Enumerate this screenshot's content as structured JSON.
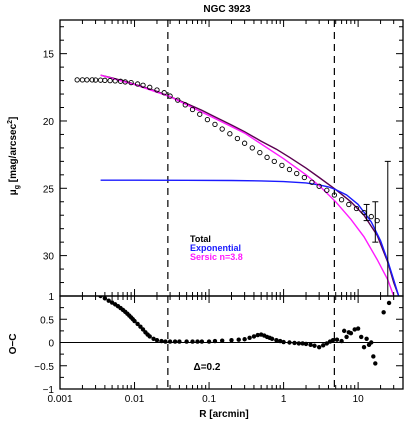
{
  "chart_data": [
    {
      "type": "scatter",
      "title": "NGC 3923",
      "xlabel": "R [arcmin]",
      "ylabel": "μ_g [mag/arcsec²]",
      "ylabel_main": "μ",
      "ylabel_sub": "g",
      "ylabel_rest": " [mag/arcsec",
      "ylabel_sup": "2",
      "ylabel_end": "]",
      "x_scale": "log",
      "xlim": [
        0.001,
        40
      ],
      "ylim": [
        33,
        12.5
      ],
      "y_inverted": true,
      "x_ticks": [
        "0.001",
        "0.01",
        "0.1",
        "1",
        "10"
      ],
      "y_ticks": [
        "15",
        "20",
        "25",
        "30"
      ],
      "grid": false,
      "legend": [
        {
          "label": "Total",
          "color": "#000000"
        },
        {
          "label": "Exponential",
          "color": "#1a1aff"
        },
        {
          "label": "Sersic n=3.8",
          "color": "#ff1aff"
        }
      ],
      "legend_position": "lower-center",
      "vlines": [
        0.028,
        4.8
      ],
      "series": [
        {
          "name": "Total",
          "kind": "line",
          "color": "#5a0050",
          "x": [
            0.0035,
            0.005,
            0.008,
            0.012,
            0.02,
            0.03,
            0.05,
            0.08,
            0.12,
            0.2,
            0.3,
            0.5,
            0.8,
            1.2,
            2,
            3,
            5,
            8,
            12,
            18,
            25,
            30,
            35
          ],
          "y": [
            16.6,
            16.8,
            17.1,
            17.4,
            17.8,
            18.2,
            18.7,
            19.2,
            19.7,
            20.3,
            20.8,
            21.5,
            22.1,
            22.7,
            23.5,
            24.2,
            25.1,
            26.0,
            27.0,
            28.5,
            30.5,
            32.0,
            33.0
          ]
        },
        {
          "name": "Exponential",
          "kind": "line",
          "color": "#1a1aff",
          "x": [
            0.0035,
            0.01,
            0.05,
            0.2,
            0.5,
            1,
            2,
            3,
            4,
            5,
            7,
            10,
            15,
            20,
            25,
            30,
            35
          ],
          "y": [
            24.4,
            24.4,
            24.41,
            24.42,
            24.45,
            24.5,
            24.6,
            24.75,
            24.9,
            25.1,
            25.5,
            26.2,
            27.5,
            28.9,
            30.4,
            31.8,
            33.0
          ]
        },
        {
          "name": "Sersic n=3.8",
          "kind": "line",
          "color": "#ff1aff",
          "x": [
            0.0035,
            0.01,
            0.03,
            0.1,
            0.3,
            1,
            2,
            3,
            5,
            8,
            12,
            18,
            25,
            30
          ],
          "y": [
            16.6,
            17.3,
            18.2,
            19.6,
            20.9,
            22.8,
            24.0,
            24.8,
            26.0,
            27.3,
            28.6,
            30.3,
            31.8,
            33.0
          ]
        },
        {
          "name": "data",
          "kind": "points",
          "color": "#000000",
          "x": [
            0.0017,
            0.002,
            0.0023,
            0.0027,
            0.003,
            0.0035,
            0.004,
            0.0047,
            0.0055,
            0.0065,
            0.0075,
            0.009,
            0.011,
            0.013,
            0.016,
            0.02,
            0.025,
            0.03,
            0.038,
            0.048,
            0.06,
            0.075,
            0.095,
            0.12,
            0.15,
            0.19,
            0.24,
            0.3,
            0.38,
            0.48,
            0.6,
            0.75,
            0.95,
            1.2,
            1.5,
            1.9,
            2.4,
            3.0,
            3.8,
            4.8,
            6.0,
            7.5,
            9.5,
            12,
            15,
            18
          ],
          "y": [
            16.95,
            16.95,
            16.95,
            16.95,
            16.96,
            16.97,
            16.98,
            17.0,
            17.02,
            17.05,
            17.1,
            17.15,
            17.25,
            17.35,
            17.5,
            17.7,
            17.9,
            18.15,
            18.45,
            18.8,
            19.15,
            19.5,
            19.9,
            20.25,
            20.6,
            20.95,
            21.3,
            21.65,
            22.0,
            22.35,
            22.7,
            23.0,
            23.3,
            23.6,
            23.9,
            24.2,
            24.55,
            24.85,
            25.15,
            25.5,
            25.85,
            26.2,
            26.5,
            26.8,
            27.1,
            27.4
          ]
        },
        {
          "name": "errorbars",
          "kind": "errorbar",
          "color": "#000000",
          "x": [
            13,
            17,
            25
          ],
          "y": [
            26.8,
            27.5,
            28.0
          ],
          "yerr": [
            0.6,
            1.5,
            5.0
          ]
        }
      ]
    },
    {
      "type": "scatter",
      "title": "",
      "xlabel": "R [arcmin]",
      "ylabel": "O−C",
      "x_scale": "log",
      "xlim": [
        0.001,
        40
      ],
      "ylim": [
        -1,
        1
      ],
      "y_ticks": [
        "1",
        "0.5",
        "0",
        "−0.5",
        "−1"
      ],
      "x_ticks": [
        "0.001",
        "0.01",
        "0.1",
        "1",
        "10"
      ],
      "annotation": "Δ=0.2",
      "hline": 0,
      "vlines": [
        0.028,
        4.8
      ],
      "series": [
        {
          "name": "residuals",
          "kind": "points",
          "color": "#000000",
          "x": [
            0.0035,
            0.004,
            0.0045,
            0.005,
            0.0055,
            0.006,
            0.0065,
            0.007,
            0.0075,
            0.008,
            0.0085,
            0.009,
            0.0095,
            0.01,
            0.011,
            0.012,
            0.013,
            0.014,
            0.015,
            0.016,
            0.018,
            0.02,
            0.023,
            0.026,
            0.03,
            0.035,
            0.04,
            0.05,
            0.06,
            0.07,
            0.08,
            0.1,
            0.12,
            0.15,
            0.2,
            0.25,
            0.3,
            0.35,
            0.4,
            0.45,
            0.5,
            0.55,
            0.6,
            0.65,
            0.7,
            0.8,
            0.9,
            1.0,
            1.2,
            1.4,
            1.6,
            1.8,
            2.0,
            2.3,
            2.6,
            3.0,
            3.4,
            3.8,
            4.2,
            4.6,
            5.2,
            6.0,
            6.5,
            7.0,
            7.5,
            8.0,
            9.0,
            10.0,
            11.0,
            12.0,
            13.0,
            14.0,
            15.0,
            16.0,
            17.0,
            22.0,
            26.0
          ],
          "y": [
            1.0,
            0.95,
            0.9,
            0.86,
            0.82,
            0.78,
            0.74,
            0.7,
            0.66,
            0.62,
            0.58,
            0.54,
            0.5,
            0.46,
            0.4,
            0.34,
            0.28,
            0.22,
            0.17,
            0.13,
            0.08,
            0.05,
            0.03,
            0.02,
            0.02,
            0.02,
            0.02,
            0.02,
            0.02,
            0.02,
            0.02,
            0.02,
            0.03,
            0.04,
            0.05,
            0.06,
            0.07,
            0.1,
            0.13,
            0.16,
            0.17,
            0.15,
            0.12,
            0.1,
            0.08,
            0.05,
            0.03,
            0.01,
            0.0,
            -0.01,
            -0.02,
            -0.02,
            -0.03,
            -0.05,
            -0.07,
            -0.1,
            -0.06,
            -0.02,
            0.02,
            0.05,
            0.06,
            0.03,
            0.25,
            0.12,
            0.22,
            0.2,
            0.28,
            0.3,
            0.12,
            -0.1,
            0.08,
            -0.05,
            0.0,
            -0.3,
            -0.45,
            0.65,
            0.85
          ]
        }
      ]
    }
  ]
}
